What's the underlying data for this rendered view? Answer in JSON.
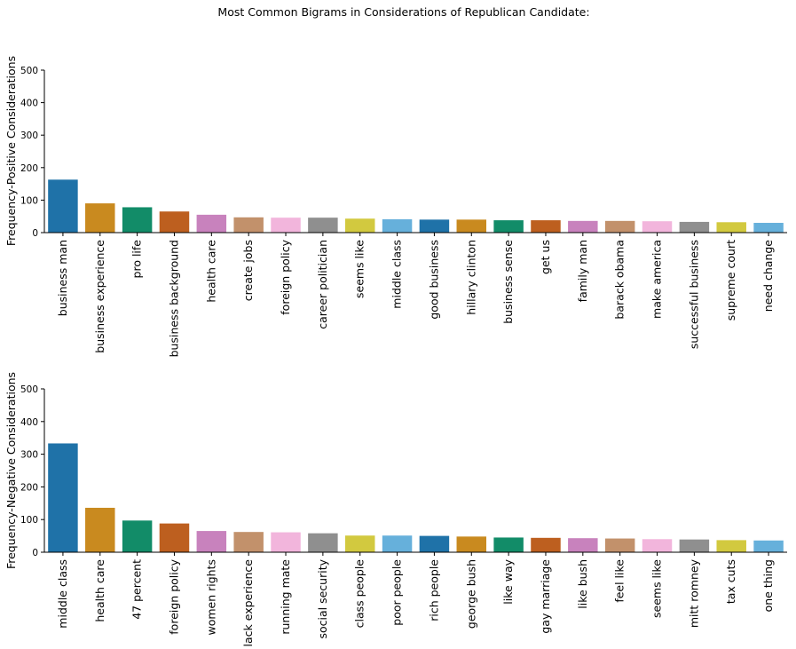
{
  "figure": {
    "title": "Most Common Bigrams in Considerations of Republican Candidate:"
  },
  "palette": [
    "#1f72a8",
    "#c98a1f",
    "#128c68",
    "#bd5f1f",
    "#c882bd",
    "#c2916b",
    "#f2b5dc",
    "#8f8f8f",
    "#d2c93f",
    "#66b0db"
  ],
  "chart_data": [
    {
      "type": "bar",
      "title": "",
      "xlabel": "",
      "ylabel": "Frequency-Positive Considerations",
      "ylim": [
        0,
        500
      ],
      "yticks": [
        0,
        100,
        200,
        300,
        400,
        500
      ],
      "grid": false,
      "categories": [
        "business man",
        "business experience",
        "pro life",
        "business background",
        "health care",
        "create jobs",
        "foreign policy",
        "career politician",
        "seems like",
        "middle class",
        "good business",
        "hillary clinton",
        "business sense",
        "get us",
        "family man",
        "barack obama",
        "make america",
        "successful business",
        "supreme court",
        "need change"
      ],
      "values": [
        163,
        90,
        78,
        65,
        55,
        47,
        46,
        46,
        43,
        41,
        40,
        40,
        38,
        38,
        36,
        36,
        35,
        33,
        32,
        30
      ]
    },
    {
      "type": "bar",
      "title": "",
      "xlabel": "",
      "ylabel": "Frequency-Negative Considerations",
      "ylim": [
        0,
        500
      ],
      "yticks": [
        0,
        100,
        200,
        300,
        400,
        500
      ],
      "grid": false,
      "categories": [
        "middle class",
        "health care",
        "47 percent",
        "foreign policy",
        "women rights",
        "lack experience",
        "running mate",
        "social security",
        "class people",
        "poor people",
        "rich people",
        "george bush",
        "like way",
        "gay marriage",
        "like bush",
        "feel like",
        "seems like",
        "mitt romney",
        "tax cuts",
        "one thing"
      ],
      "values": [
        333,
        136,
        97,
        88,
        65,
        62,
        61,
        58,
        51,
        51,
        50,
        48,
        45,
        44,
        43,
        42,
        40,
        39,
        37,
        36
      ]
    }
  ]
}
